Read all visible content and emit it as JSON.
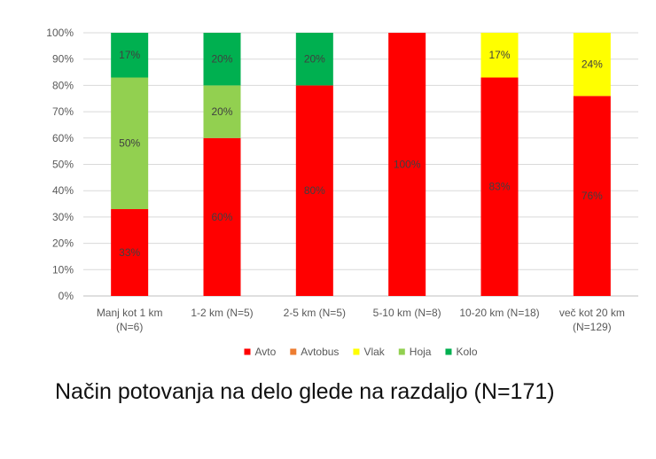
{
  "caption": "Način potovanja na delo glede na razdaljo (N=171)",
  "chart_data": {
    "type": "bar",
    "stacked": true,
    "percent": true,
    "categories": [
      [
        "Manj kot 1 km",
        "(N=6)"
      ],
      [
        "1-2 km (N=5)"
      ],
      [
        "2-5 km (N=5)"
      ],
      [
        "5-10 km (N=8)"
      ],
      [
        "10-20 km (N=18)"
      ],
      [
        "več kot 20 km",
        "(N=129)"
      ]
    ],
    "series": [
      {
        "name": "Avto",
        "color": "#ff0000",
        "values": [
          33,
          60,
          80,
          100,
          83,
          76
        ],
        "labels": [
          "33%",
          "60%",
          "80%",
          "100%",
          "83%",
          "76%"
        ]
      },
      {
        "name": "Avtobus",
        "color": "#ed7d31",
        "values": [
          0,
          0,
          0,
          0,
          0,
          0
        ],
        "labels": [
          "",
          "",
          "",
          "",
          "",
          ""
        ]
      },
      {
        "name": "Vlak",
        "color": "#ffff00",
        "values": [
          0,
          0,
          0,
          0,
          17,
          24
        ],
        "labels": [
          "",
          "",
          "",
          "",
          "17%",
          "24%"
        ]
      },
      {
        "name": "Hoja",
        "color": "#92d050",
        "values": [
          50,
          20,
          0,
          0,
          0,
          0
        ],
        "labels": [
          "50%",
          "20%",
          "",
          "",
          "",
          ""
        ]
      },
      {
        "name": "Kolo",
        "color": "#00b050",
        "values": [
          17,
          20,
          20,
          0,
          0,
          0
        ],
        "labels": [
          "17%",
          "20%",
          "20%",
          "",
          "",
          ""
        ]
      }
    ],
    "y_ticks": [
      "0%",
      "10%",
      "20%",
      "30%",
      "40%",
      "50%",
      "60%",
      "70%",
      "80%",
      "90%",
      "100%"
    ],
    "ylim": [
      0,
      100
    ],
    "grid": true,
    "legend": "bottom"
  }
}
